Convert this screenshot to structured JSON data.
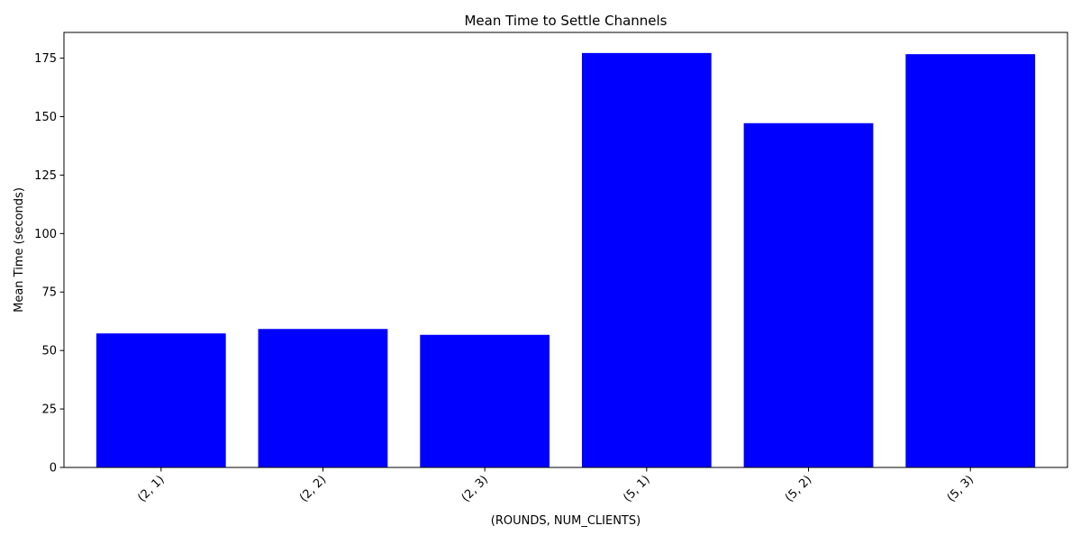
{
  "chart_data": {
    "type": "bar",
    "title": "Mean Time to Settle Channels",
    "xlabel": "(ROUNDS, NUM_CLIENTS)",
    "ylabel": "Mean Time (seconds)",
    "categories": [
      "(2, 1)",
      "(2, 2)",
      "(2, 3)",
      "(5, 1)",
      "(5, 2)",
      "(5, 3)"
    ],
    "values": [
      57.3,
      59.2,
      56.7,
      177.2,
      147.2,
      176.7
    ],
    "ylim": [
      0,
      186
    ],
    "yticks": [
      0,
      25,
      50,
      75,
      100,
      125,
      150,
      175
    ],
    "bar_color": "#0000ff",
    "grid": false,
    "legend": "none"
  }
}
